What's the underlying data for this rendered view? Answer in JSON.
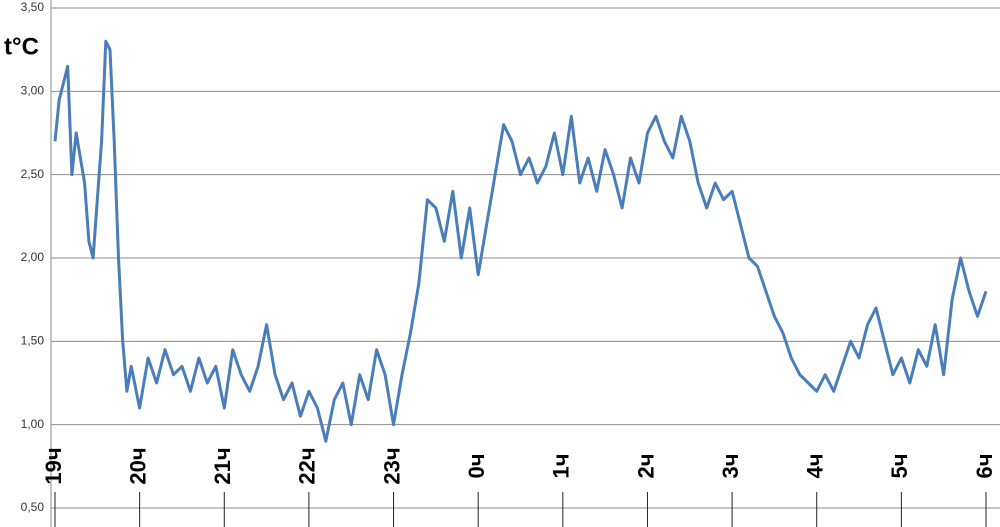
{
  "chart_data": {
    "type": "line",
    "y_label": "t°C",
    "x": [
      0,
      0.05,
      0.1,
      0.15,
      0.2,
      0.25,
      0.3,
      0.35,
      0.4,
      0.45,
      0.5,
      0.55,
      0.6,
      0.65,
      0.7,
      0.75,
      0.8,
      0.85,
      0.9,
      1.0,
      1.1,
      1.2,
      1.3,
      1.4,
      1.5,
      1.6,
      1.7,
      1.8,
      1.9,
      2.0,
      2.1,
      2.2,
      2.3,
      2.4,
      2.5,
      2.6,
      2.7,
      2.8,
      2.9,
      3.0,
      3.1,
      3.2,
      3.3,
      3.4,
      3.5,
      3.6,
      3.7,
      3.8,
      3.9,
      4.0,
      4.1,
      4.2,
      4.3,
      4.4,
      4.5,
      4.6,
      4.7,
      4.8,
      4.9,
      5.0,
      5.1,
      5.2,
      5.3,
      5.4,
      5.5,
      5.6,
      5.7,
      5.8,
      5.9,
      6.0,
      6.1,
      6.2,
      6.3,
      6.4,
      6.5,
      6.6,
      6.7,
      6.8,
      6.9,
      7.0,
      7.1,
      7.2,
      7.3,
      7.4,
      7.5,
      7.6,
      7.7,
      7.8,
      7.9,
      8.0,
      8.1,
      8.2,
      8.3,
      8.4,
      8.5,
      8.6,
      8.7,
      8.8,
      8.9,
      9.0,
      9.1,
      9.2,
      9.3,
      9.4,
      9.5,
      9.6,
      9.7,
      9.8,
      9.9,
      10.0,
      10.1,
      10.2,
      10.3,
      10.4,
      10.5,
      10.6,
      10.7,
      10.8,
      10.9,
      11.0
    ],
    "series": [
      {
        "color": "#4a7ebb",
        "values": [
          2.7,
          2.95,
          3.05,
          3.15,
          2.5,
          2.75,
          2.6,
          2.45,
          2.1,
          2.0,
          2.35,
          2.7,
          3.3,
          3.25,
          2.7,
          2.0,
          1.5,
          1.2,
          1.35,
          1.1,
          1.4,
          1.25,
          1.45,
          1.3,
          1.35,
          1.2,
          1.4,
          1.25,
          1.35,
          1.1,
          1.45,
          1.3,
          1.2,
          1.35,
          1.6,
          1.3,
          1.15,
          1.25,
          1.05,
          1.2,
          1.1,
          0.9,
          1.15,
          1.25,
          1.0,
          1.3,
          1.15,
          1.45,
          1.3,
          1.0,
          1.3,
          1.55,
          1.85,
          2.35,
          2.3,
          2.1,
          2.4,
          2.0,
          2.3,
          1.9,
          2.2,
          2.5,
          2.8,
          2.7,
          2.5,
          2.6,
          2.45,
          2.55,
          2.75,
          2.5,
          2.85,
          2.45,
          2.6,
          2.4,
          2.65,
          2.5,
          2.3,
          2.6,
          2.45,
          2.75,
          2.85,
          2.7,
          2.6,
          2.85,
          2.7,
          2.45,
          2.3,
          2.45,
          2.35,
          2.4,
          2.2,
          2.0,
          1.95,
          1.8,
          1.65,
          1.55,
          1.4,
          1.3,
          1.25,
          1.2,
          1.3,
          1.2,
          1.35,
          1.5,
          1.4,
          1.6,
          1.7,
          1.5,
          1.3,
          1.4,
          1.25,
          1.45,
          1.35,
          1.6,
          1.3,
          1.75,
          2.0,
          1.8,
          1.65,
          1.8
        ]
      }
    ],
    "xlim": [
      0,
      11
    ],
    "xticks": [
      {
        "value": 0,
        "label": "19ч"
      },
      {
        "value": 1,
        "label": "20ч"
      },
      {
        "value": 2,
        "label": "21ч"
      },
      {
        "value": 3,
        "label": "22ч"
      },
      {
        "value": 4,
        "label": "23ч"
      },
      {
        "value": 5,
        "label": "0ч"
      },
      {
        "value": 6,
        "label": "1ч"
      },
      {
        "value": 7,
        "label": "2ч"
      },
      {
        "value": 8,
        "label": "3ч"
      },
      {
        "value": 9,
        "label": "4ч"
      },
      {
        "value": 10,
        "label": "5ч"
      },
      {
        "value": 11,
        "label": "6ч"
      }
    ],
    "ylim": [
      0.5,
      3.5
    ],
    "yticks": [
      {
        "value": 0.5,
        "label": "0,50"
      },
      {
        "value": 1,
        "label": "1,00"
      },
      {
        "value": 1.5,
        "label": "1,50"
      },
      {
        "value": 2,
        "label": "2,00"
      },
      {
        "value": 2.5,
        "label": "2,50"
      },
      {
        "value": 3,
        "label": "3,00"
      },
      {
        "value": 3.5,
        "label": "3,50"
      }
    ],
    "grid": true
  }
}
